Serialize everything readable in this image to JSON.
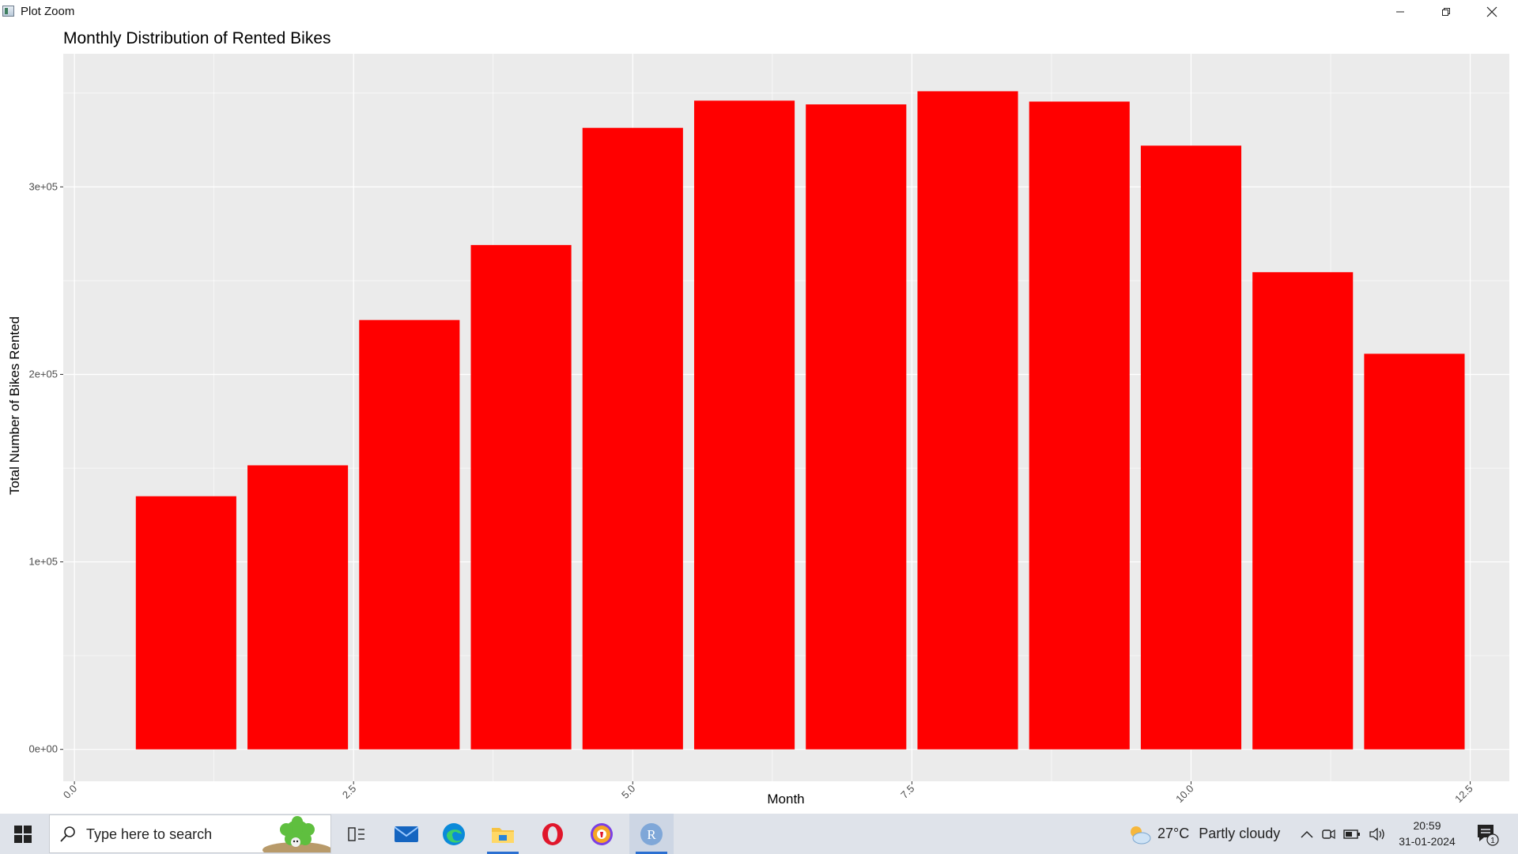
{
  "window": {
    "title": "Plot Zoom",
    "controls": {
      "minimize_icon": "minimize-icon",
      "maximize_icon": "restore-icon",
      "close_icon": "close-icon"
    }
  },
  "chart_data": {
    "type": "bar",
    "title": "Monthly Distribution of Rented Bikes",
    "xlabel": "Month",
    "ylabel": "Total Number of Bikes Rented",
    "x": [
      1,
      2,
      3,
      4,
      5,
      6,
      7,
      8,
      9,
      10,
      11,
      12
    ],
    "values": [
      135000,
      151500,
      229000,
      269000,
      331500,
      346000,
      344000,
      351000,
      345500,
      322000,
      254500,
      211000
    ],
    "bar_color": "#ff0000",
    "xlim": [
      -0.1,
      12.85
    ],
    "ylim": [
      -17000,
      371000
    ],
    "x_ticks": [
      "0.0",
      "2.5",
      "5.0",
      "7.5",
      "10.0",
      "12.5"
    ],
    "y_ticks": [
      "0e+00",
      "1e+05",
      "2e+05",
      "3e+05"
    ],
    "grid": true,
    "panel_background": "#ebebeb",
    "grid_color": "#ffffff"
  },
  "taskbar": {
    "start_icon": "windows-logo-icon",
    "search_placeholder": "Type here to search",
    "apps": [
      "task-view-icon",
      "mail-icon",
      "edge-icon",
      "file-explorer-icon",
      "opera-icon",
      "brave-icon",
      "r-icon"
    ],
    "weather": {
      "temp": "27°C",
      "condition": "Partly cloudy"
    },
    "clock": {
      "time": "20:59",
      "date": "31-01-2024"
    },
    "notifications": "1"
  }
}
